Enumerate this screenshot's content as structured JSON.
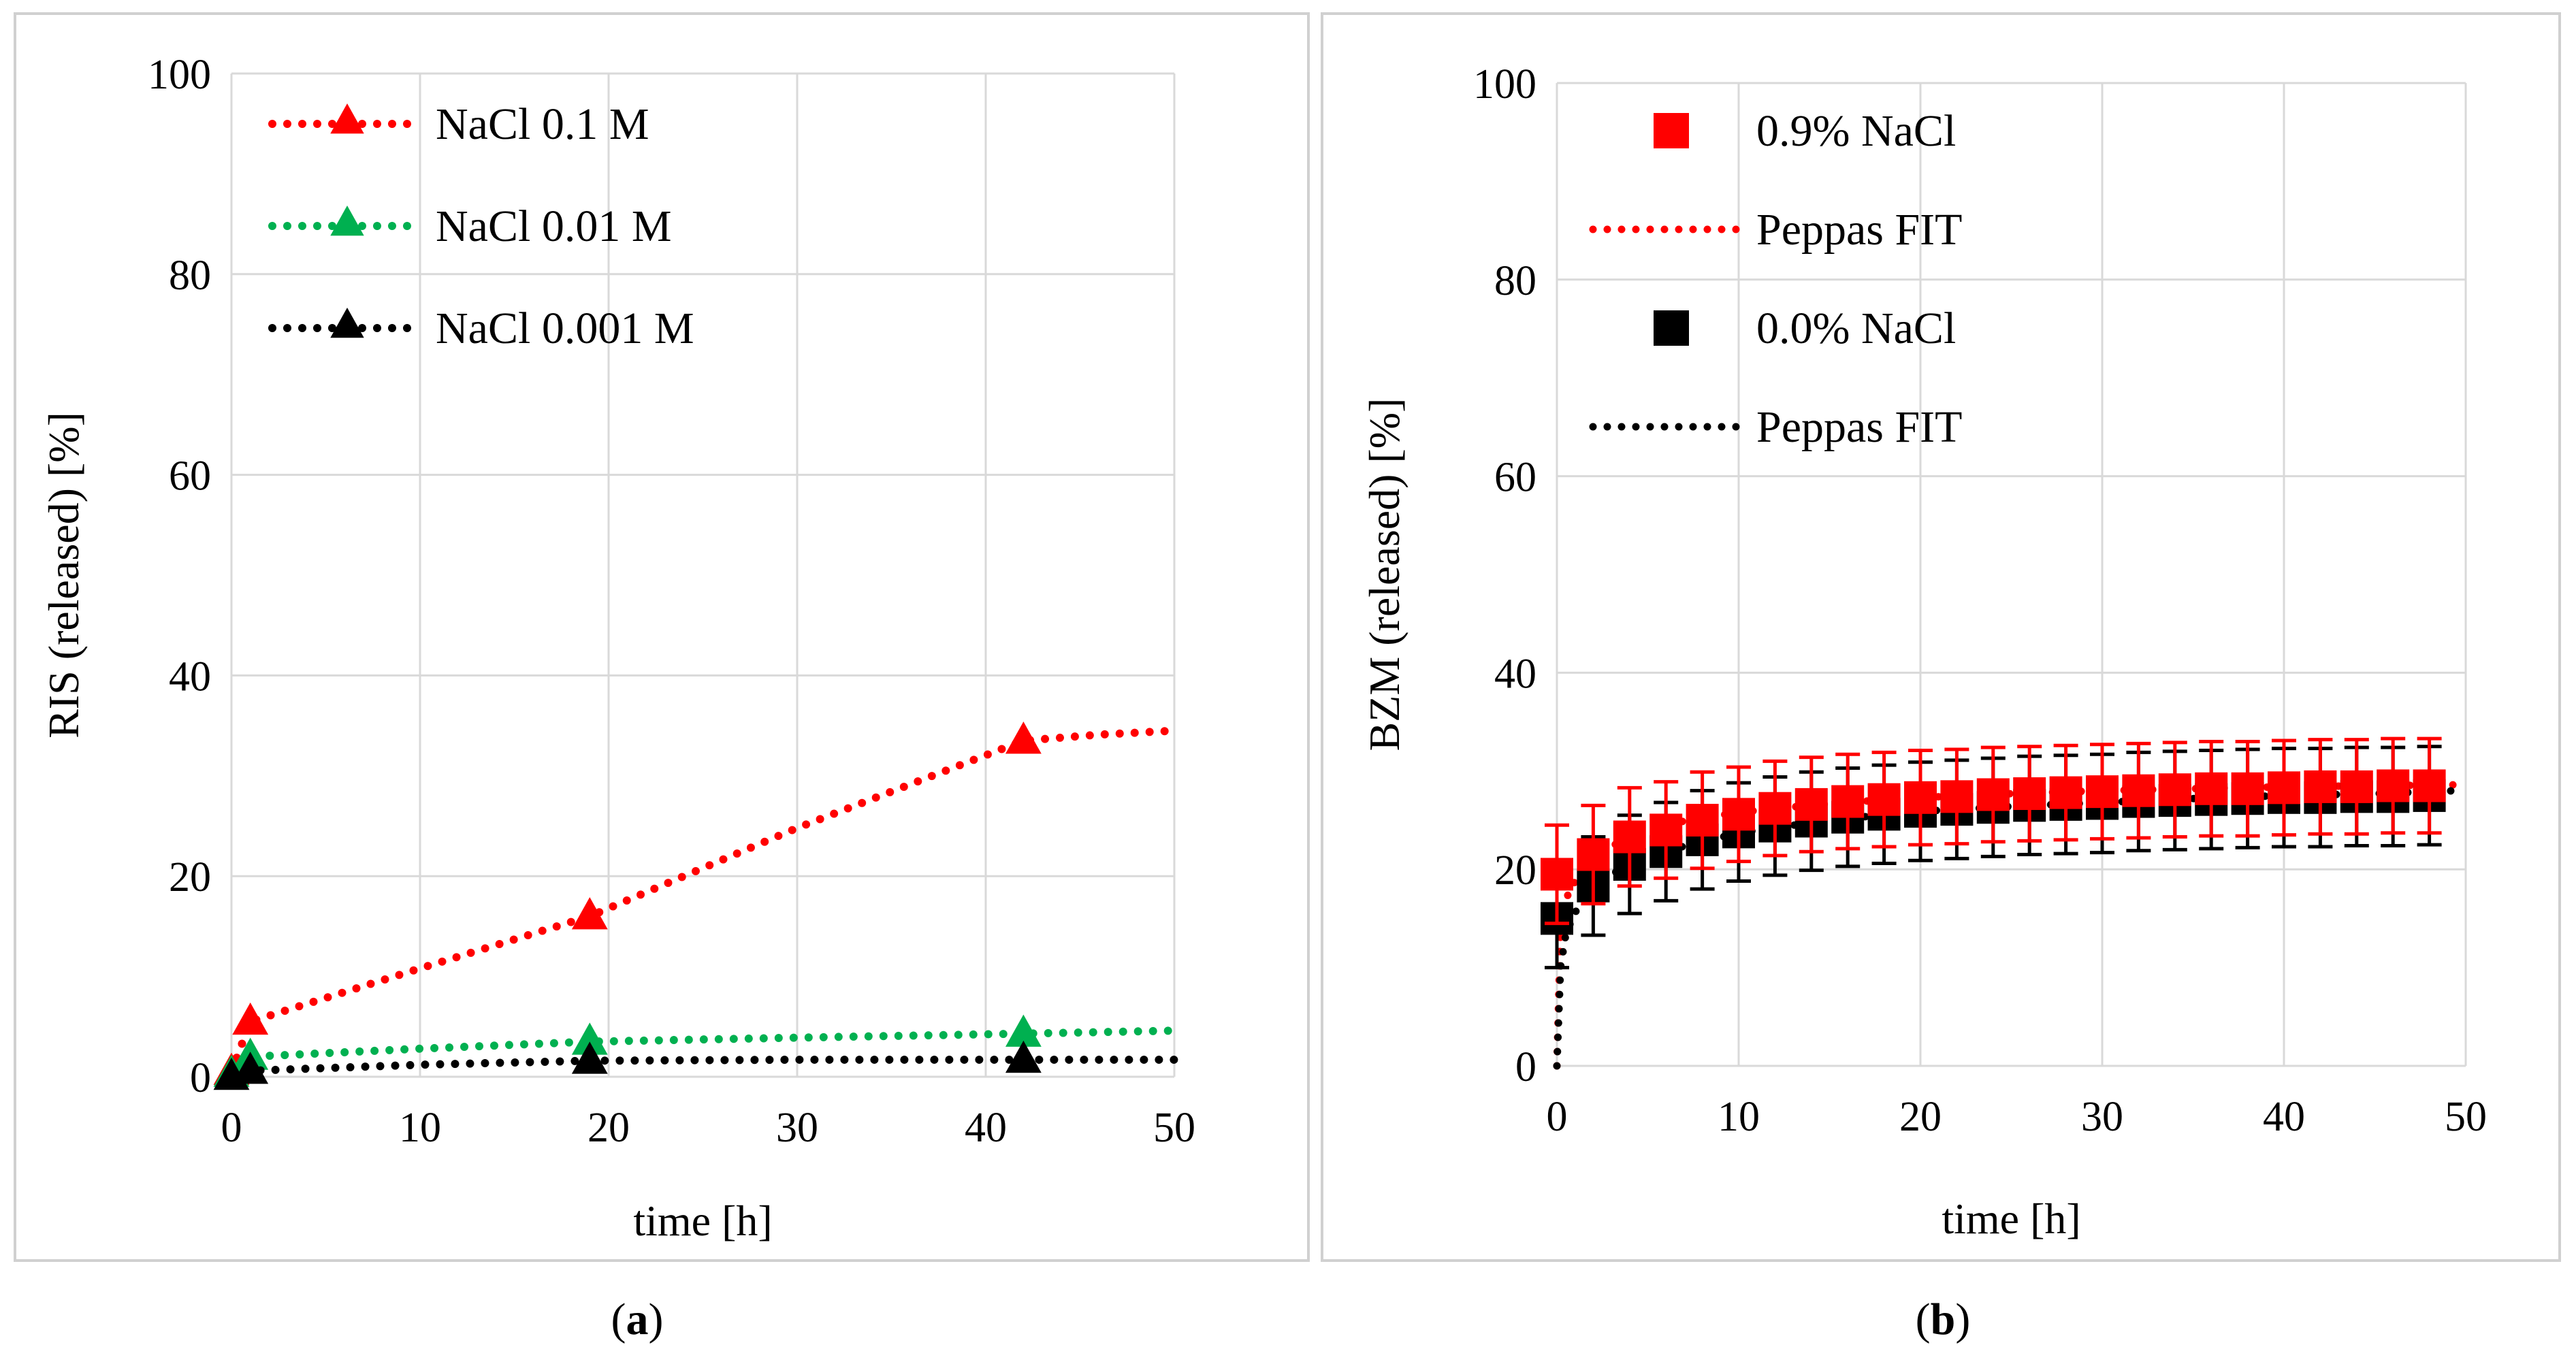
{
  "chart_data": [
    {
      "panel": "a",
      "type": "line",
      "caption_letter": "a",
      "xlabel": "time [h]",
      "ylabel": "RIS (released) [%]",
      "xlim": [
        0,
        50
      ],
      "ylim": [
        0,
        100
      ],
      "xticks": [
        "0",
        "10",
        "20",
        "30",
        "40",
        "50"
      ],
      "yticks": [
        "0",
        "20",
        "40",
        "60",
        "80",
        "100"
      ],
      "grid": true,
      "legend_position": "top-left",
      "series": [
        {
          "name": "NaCl 0.1 M",
          "color": "#ff0000",
          "marker": "triangle",
          "points": [
            [
              0,
              0.5
            ],
            [
              1,
              5.5
            ],
            [
              19,
              16
            ],
            [
              42,
              33.5
            ]
          ],
          "fit": [
            [
              0,
              0.5
            ],
            [
              1,
              5.5
            ],
            [
              10,
              10.8
            ],
            [
              19,
              16
            ],
            [
              30,
              24.8
            ],
            [
              42,
              33.5
            ],
            [
              46,
              34.1
            ],
            [
              50,
              34.5
            ]
          ]
        },
        {
          "name": "NaCl 0.01 M",
          "color": "#00b050",
          "marker": "triangle",
          "points": [
            [
              0,
              0.3
            ],
            [
              1,
              2
            ],
            [
              19,
              3.5
            ],
            [
              42,
              4.3
            ]
          ],
          "fit": [
            [
              0,
              0.3
            ],
            [
              1,
              2
            ],
            [
              10,
              2.8
            ],
            [
              19,
              3.5
            ],
            [
              30,
              3.9
            ],
            [
              42,
              4.3
            ],
            [
              50,
              4.6
            ]
          ]
        },
        {
          "name": "NaCl 0.001 M",
          "color": "#000000",
          "marker": "triangle",
          "points": [
            [
              0,
              0
            ],
            [
              1,
              0.6
            ],
            [
              19,
              1.6
            ],
            [
              42,
              1.7
            ]
          ],
          "fit": [
            [
              0,
              0
            ],
            [
              1,
              0.6
            ],
            [
              10,
              1.2
            ],
            [
              19,
              1.6
            ],
            [
              30,
              1.7
            ],
            [
              42,
              1.7
            ],
            [
              50,
              1.7
            ]
          ]
        }
      ]
    },
    {
      "panel": "b",
      "type": "scatter",
      "caption_letter": "b",
      "xlabel": "time [h]",
      "ylabel": "BZM (released) [%]",
      "xlim": [
        0,
        50
      ],
      "ylim": [
        0,
        100
      ],
      "xticks": [
        "0",
        "10",
        "20",
        "30",
        "40",
        "50"
      ],
      "yticks": [
        "0",
        "20",
        "40",
        "60",
        "80",
        "100"
      ],
      "grid": true,
      "legend_position": "top-left",
      "series": [
        {
          "name": "0.9% NaCl",
          "color": "#ff0000",
          "marker": "square",
          "x": [
            0,
            2,
            4,
            6,
            8,
            10,
            12,
            14,
            16,
            18,
            20,
            22,
            24,
            26,
            28,
            30,
            32,
            34,
            36,
            38,
            40,
            42,
            44,
            46,
            48
          ],
          "y": [
            19.5,
            21.5,
            23.3,
            24.0,
            25.0,
            25.6,
            26.2,
            26.6,
            26.9,
            27.1,
            27.3,
            27.4,
            27.6,
            27.7,
            27.8,
            27.9,
            28.0,
            28.1,
            28.2,
            28.2,
            28.3,
            28.4,
            28.4,
            28.5,
            28.5
          ],
          "err": [
            5.0,
            5.0,
            5.0,
            4.9,
            4.9,
            4.8,
            4.8,
            4.8,
            4.8,
            4.8,
            4.8,
            4.8,
            4.8,
            4.8,
            4.8,
            4.8,
            4.8,
            4.8,
            4.8,
            4.8,
            4.8,
            4.8,
            4.8,
            4.8,
            4.8
          ]
        },
        {
          "name": "Peppas FIT",
          "color": "#ff0000",
          "line": "dotted",
          "x": [
            0,
            0.2,
            0.5,
            1,
            2,
            4,
            6,
            10,
            15,
            20,
            25,
            30,
            35,
            40,
            45,
            49.5
          ],
          "y": [
            0,
            14,
            17,
            18.8,
            21.2,
            23.4,
            24.6,
            25.8,
            26.7,
            27.3,
            27.7,
            28.0,
            28.2,
            28.4,
            28.5,
            28.6
          ]
        },
        {
          "name": "0.0% NaCl",
          "color": "#000000",
          "marker": "square",
          "x": [
            0,
            2,
            4,
            6,
            8,
            10,
            12,
            14,
            16,
            18,
            20,
            22,
            24,
            26,
            28,
            30,
            32,
            34,
            36,
            38,
            40,
            42,
            44,
            46,
            48
          ],
          "y": [
            15.0,
            18.3,
            20.5,
            21.8,
            23.0,
            23.8,
            24.4,
            24.9,
            25.3,
            25.6,
            25.9,
            26.1,
            26.3,
            26.5,
            26.6,
            26.7,
            26.9,
            27.0,
            27.1,
            27.2,
            27.3,
            27.3,
            27.4,
            27.4,
            27.5
          ],
          "err": [
            5.0,
            5.0,
            5.0,
            5.0,
            5.0,
            5.0,
            5.0,
            5.0,
            5.0,
            5.0,
            5.0,
            5.0,
            5.0,
            5.0,
            5.0,
            5.0,
            5.0,
            5.0,
            5.0,
            5.0,
            5.0,
            5.0,
            5.0,
            5.0,
            5.0
          ]
        },
        {
          "name": "Peppas FIT",
          "color": "#000000",
          "line": "dotted",
          "x": [
            0,
            0.2,
            0.5,
            1,
            2,
            4,
            6,
            10,
            15,
            20,
            25,
            30,
            35,
            40,
            45,
            49.5
          ],
          "y": [
            0,
            10,
            13.5,
            15.6,
            18.3,
            20.6,
            21.9,
            23.7,
            25.0,
            25.9,
            26.4,
            26.8,
            27.2,
            27.5,
            27.7,
            28.0
          ]
        }
      ]
    }
  ]
}
